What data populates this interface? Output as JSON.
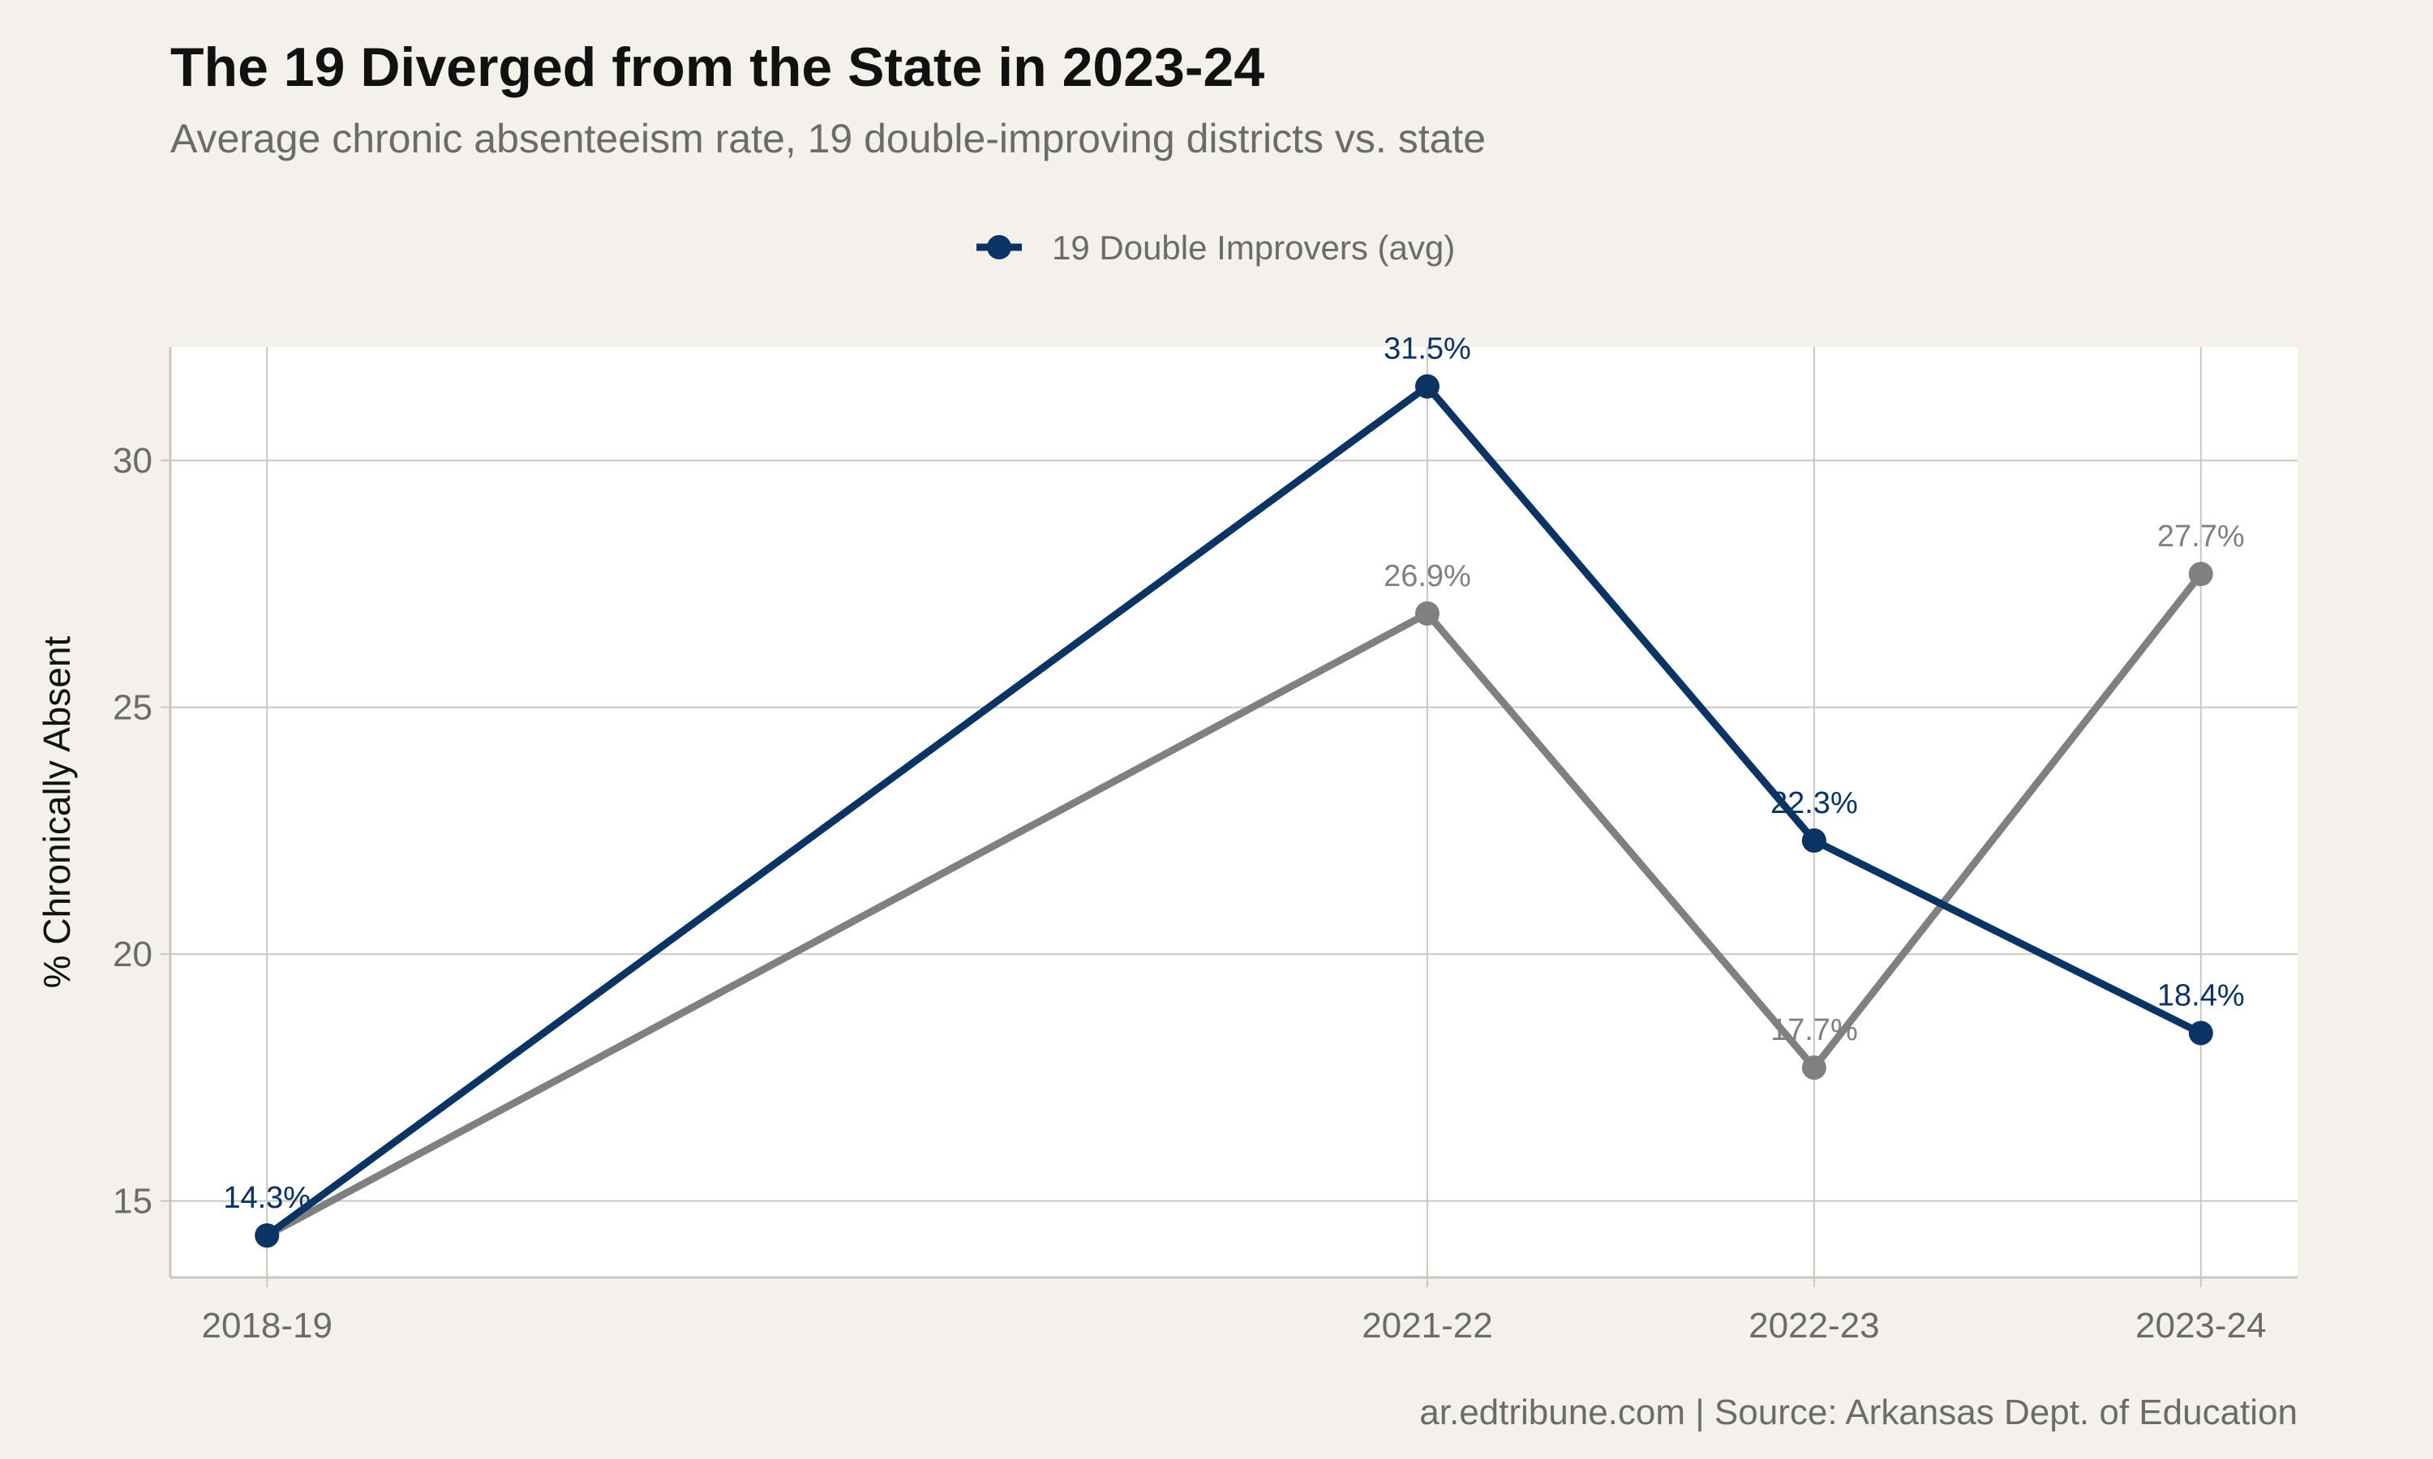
{
  "title": "The 19 Diverged from the State in 2023-24",
  "subtitle": "Average chronic absenteeism rate, 19 double-improving districts vs. state",
  "caption": "ar.edtribune.com | Source: Arkansas Dept. of Education",
  "colors": {
    "background": "#f4f1ec",
    "panel": "#ffffff",
    "grid": "#c9c8c0",
    "improvers": "#0b3363",
    "state": "#808080",
    "text_muted": "#6b6b6b"
  },
  "chart_data": {
    "type": "line",
    "title": "The 19 Diverged from the State in 2023-24",
    "subtitle": "Average chronic absenteeism rate, 19 double-improving districts vs. state",
    "xlabel": "",
    "ylabel": "% Chronically Absent",
    "x_tick_labels": [
      "2018-19",
      "2021-22",
      "2022-23",
      "2023-24"
    ],
    "x_years": [
      2018,
      2021,
      2022,
      2023
    ],
    "xlim": [
      2017.75,
      2023.25
    ],
    "ylim": [
      13.45,
      32.3
    ],
    "y_ticks": [
      15,
      20,
      25,
      30
    ],
    "grid": true,
    "legend_position": "top",
    "series": [
      {
        "name": "",
        "color": "#808080",
        "values": [
          14.3,
          26.9,
          17.7,
          27.7
        ],
        "labels": [
          "14.3%",
          "26.9%",
          "17.7%",
          "27.7%"
        ]
      },
      {
        "name": "19 Double Improvers (avg)",
        "color": "#0b3363",
        "values": [
          14.3,
          31.5,
          22.3,
          18.4
        ],
        "labels": [
          "14.3%",
          "31.5%",
          "22.3%",
          "18.4%"
        ]
      }
    ]
  }
}
